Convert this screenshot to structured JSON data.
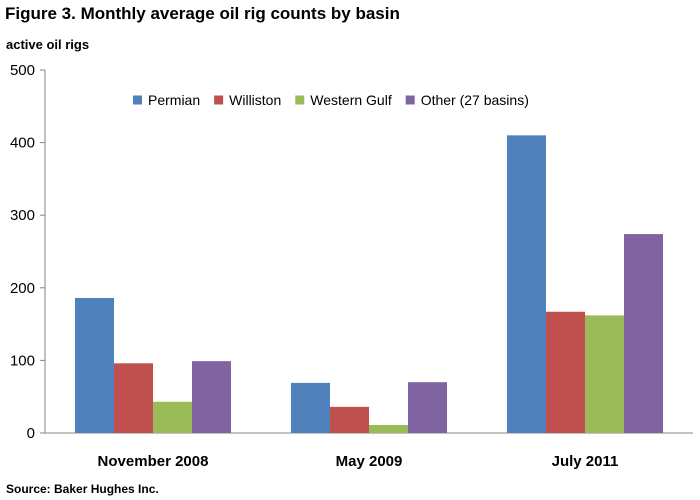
{
  "figure": {
    "title": "Figure 3.  Monthly average oil rig counts by basin",
    "source": "Source:  Baker Hughes Inc."
  },
  "chart_data": {
    "type": "bar",
    "title": "Figure 3.  Monthly average oil rig counts by basin",
    "ylabel": "active oil rigs",
    "xlabel": "",
    "ylim": [
      0,
      500
    ],
    "yticks": [
      0,
      100,
      200,
      300,
      400,
      500
    ],
    "grid": false,
    "legend_position": "top",
    "categories": [
      "November 2008",
      "May 2009",
      "July 2011"
    ],
    "series": [
      {
        "name": "Permian",
        "color": "#4f81bd",
        "values": [
          186,
          69,
          410
        ]
      },
      {
        "name": "Williston",
        "color": "#c0504d",
        "values": [
          96,
          36,
          167
        ]
      },
      {
        "name": "Western Gulf",
        "color": "#9bbb59",
        "values": [
          43,
          11,
          162
        ]
      },
      {
        "name": "Other (27 basins)",
        "color": "#8064a2",
        "values": [
          99,
          70,
          274
        ]
      }
    ]
  }
}
